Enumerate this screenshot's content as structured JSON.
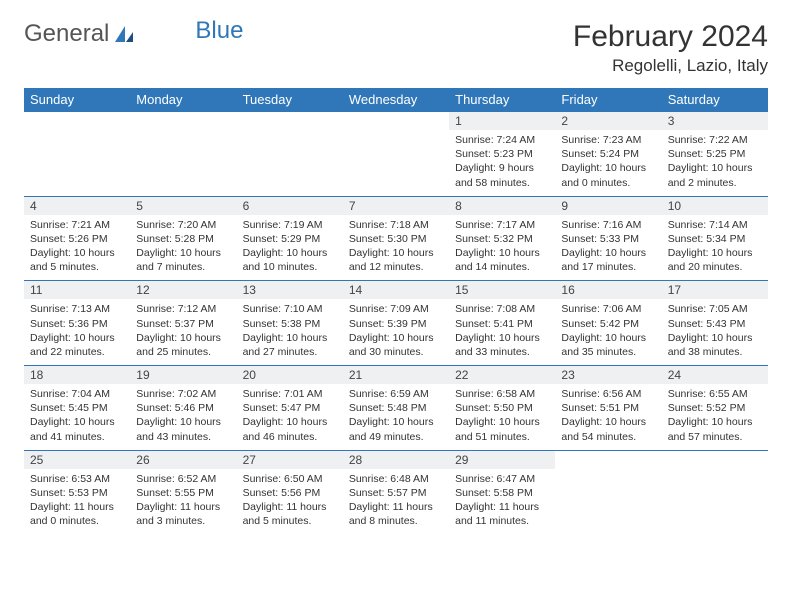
{
  "brand": {
    "part1": "General",
    "part2": "Blue"
  },
  "title": "February 2024",
  "location": "Regolelli, Lazio, Italy",
  "colors": {
    "header_bg": "#2f77b8",
    "header_fg": "#ffffff",
    "daynum_bg": "#eef0f2",
    "border": "#2f77b8",
    "text": "#333333"
  },
  "weekdays": [
    "Sunday",
    "Monday",
    "Tuesday",
    "Wednesday",
    "Thursday",
    "Friday",
    "Saturday"
  ],
  "weeks": [
    {
      "nums": [
        "",
        "",
        "",
        "",
        "1",
        "2",
        "3"
      ],
      "cells": [
        null,
        null,
        null,
        null,
        {
          "sr": "Sunrise: 7:24 AM",
          "ss": "Sunset: 5:23 PM",
          "dl1": "Daylight: 9 hours",
          "dl2": "and 58 minutes."
        },
        {
          "sr": "Sunrise: 7:23 AM",
          "ss": "Sunset: 5:24 PM",
          "dl1": "Daylight: 10 hours",
          "dl2": "and 0 minutes."
        },
        {
          "sr": "Sunrise: 7:22 AM",
          "ss": "Sunset: 5:25 PM",
          "dl1": "Daylight: 10 hours",
          "dl2": "and 2 minutes."
        }
      ]
    },
    {
      "nums": [
        "4",
        "5",
        "6",
        "7",
        "8",
        "9",
        "10"
      ],
      "cells": [
        {
          "sr": "Sunrise: 7:21 AM",
          "ss": "Sunset: 5:26 PM",
          "dl1": "Daylight: 10 hours",
          "dl2": "and 5 minutes."
        },
        {
          "sr": "Sunrise: 7:20 AM",
          "ss": "Sunset: 5:28 PM",
          "dl1": "Daylight: 10 hours",
          "dl2": "and 7 minutes."
        },
        {
          "sr": "Sunrise: 7:19 AM",
          "ss": "Sunset: 5:29 PM",
          "dl1": "Daylight: 10 hours",
          "dl2": "and 10 minutes."
        },
        {
          "sr": "Sunrise: 7:18 AM",
          "ss": "Sunset: 5:30 PM",
          "dl1": "Daylight: 10 hours",
          "dl2": "and 12 minutes."
        },
        {
          "sr": "Sunrise: 7:17 AM",
          "ss": "Sunset: 5:32 PM",
          "dl1": "Daylight: 10 hours",
          "dl2": "and 14 minutes."
        },
        {
          "sr": "Sunrise: 7:16 AM",
          "ss": "Sunset: 5:33 PM",
          "dl1": "Daylight: 10 hours",
          "dl2": "and 17 minutes."
        },
        {
          "sr": "Sunrise: 7:14 AM",
          "ss": "Sunset: 5:34 PM",
          "dl1": "Daylight: 10 hours",
          "dl2": "and 20 minutes."
        }
      ]
    },
    {
      "nums": [
        "11",
        "12",
        "13",
        "14",
        "15",
        "16",
        "17"
      ],
      "cells": [
        {
          "sr": "Sunrise: 7:13 AM",
          "ss": "Sunset: 5:36 PM",
          "dl1": "Daylight: 10 hours",
          "dl2": "and 22 minutes."
        },
        {
          "sr": "Sunrise: 7:12 AM",
          "ss": "Sunset: 5:37 PM",
          "dl1": "Daylight: 10 hours",
          "dl2": "and 25 minutes."
        },
        {
          "sr": "Sunrise: 7:10 AM",
          "ss": "Sunset: 5:38 PM",
          "dl1": "Daylight: 10 hours",
          "dl2": "and 27 minutes."
        },
        {
          "sr": "Sunrise: 7:09 AM",
          "ss": "Sunset: 5:39 PM",
          "dl1": "Daylight: 10 hours",
          "dl2": "and 30 minutes."
        },
        {
          "sr": "Sunrise: 7:08 AM",
          "ss": "Sunset: 5:41 PM",
          "dl1": "Daylight: 10 hours",
          "dl2": "and 33 minutes."
        },
        {
          "sr": "Sunrise: 7:06 AM",
          "ss": "Sunset: 5:42 PM",
          "dl1": "Daylight: 10 hours",
          "dl2": "and 35 minutes."
        },
        {
          "sr": "Sunrise: 7:05 AM",
          "ss": "Sunset: 5:43 PM",
          "dl1": "Daylight: 10 hours",
          "dl2": "and 38 minutes."
        }
      ]
    },
    {
      "nums": [
        "18",
        "19",
        "20",
        "21",
        "22",
        "23",
        "24"
      ],
      "cells": [
        {
          "sr": "Sunrise: 7:04 AM",
          "ss": "Sunset: 5:45 PM",
          "dl1": "Daylight: 10 hours",
          "dl2": "and 41 minutes."
        },
        {
          "sr": "Sunrise: 7:02 AM",
          "ss": "Sunset: 5:46 PM",
          "dl1": "Daylight: 10 hours",
          "dl2": "and 43 minutes."
        },
        {
          "sr": "Sunrise: 7:01 AM",
          "ss": "Sunset: 5:47 PM",
          "dl1": "Daylight: 10 hours",
          "dl2": "and 46 minutes."
        },
        {
          "sr": "Sunrise: 6:59 AM",
          "ss": "Sunset: 5:48 PM",
          "dl1": "Daylight: 10 hours",
          "dl2": "and 49 minutes."
        },
        {
          "sr": "Sunrise: 6:58 AM",
          "ss": "Sunset: 5:50 PM",
          "dl1": "Daylight: 10 hours",
          "dl2": "and 51 minutes."
        },
        {
          "sr": "Sunrise: 6:56 AM",
          "ss": "Sunset: 5:51 PM",
          "dl1": "Daylight: 10 hours",
          "dl2": "and 54 minutes."
        },
        {
          "sr": "Sunrise: 6:55 AM",
          "ss": "Sunset: 5:52 PM",
          "dl1": "Daylight: 10 hours",
          "dl2": "and 57 minutes."
        }
      ]
    },
    {
      "nums": [
        "25",
        "26",
        "27",
        "28",
        "29",
        "",
        ""
      ],
      "cells": [
        {
          "sr": "Sunrise: 6:53 AM",
          "ss": "Sunset: 5:53 PM",
          "dl1": "Daylight: 11 hours",
          "dl2": "and 0 minutes."
        },
        {
          "sr": "Sunrise: 6:52 AM",
          "ss": "Sunset: 5:55 PM",
          "dl1": "Daylight: 11 hours",
          "dl2": "and 3 minutes."
        },
        {
          "sr": "Sunrise: 6:50 AM",
          "ss": "Sunset: 5:56 PM",
          "dl1": "Daylight: 11 hours",
          "dl2": "and 5 minutes."
        },
        {
          "sr": "Sunrise: 6:48 AM",
          "ss": "Sunset: 5:57 PM",
          "dl1": "Daylight: 11 hours",
          "dl2": "and 8 minutes."
        },
        {
          "sr": "Sunrise: 6:47 AM",
          "ss": "Sunset: 5:58 PM",
          "dl1": "Daylight: 11 hours",
          "dl2": "and 11 minutes."
        },
        null,
        null
      ]
    }
  ]
}
